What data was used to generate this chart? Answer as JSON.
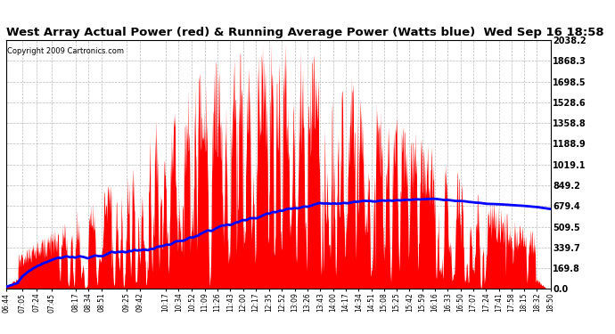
{
  "title": "West Array Actual Power (red) & Running Average Power (Watts blue)  Wed Sep 16 18:58",
  "copyright": "Copyright 2009 Cartronics.com",
  "ylabel_right_values": [
    2038.2,
    1868.3,
    1698.5,
    1528.6,
    1358.8,
    1188.9,
    1019.1,
    849.2,
    679.4,
    509.5,
    339.7,
    169.8,
    0.0
  ],
  "ymax": 2038.2,
  "ymin": 0.0,
  "bg_color": "#ffffff",
  "plot_bg_color": "#ffffff",
  "grid_color": "#bbbbbb",
  "bar_color": "#ff0000",
  "avg_color": "#0000ff",
  "time_labels": [
    "06:44",
    "07:05",
    "07:24",
    "07:45",
    "08:17",
    "08:34",
    "08:51",
    "09:25",
    "09:42",
    "10:17",
    "10:34",
    "10:52",
    "11:09",
    "11:26",
    "11:43",
    "12:00",
    "12:17",
    "12:35",
    "12:52",
    "13:09",
    "13:26",
    "13:43",
    "14:00",
    "14:17",
    "14:34",
    "14:51",
    "15:08",
    "15:25",
    "15:42",
    "15:59",
    "16:16",
    "16:33",
    "16:50",
    "17:07",
    "17:24",
    "17:41",
    "17:58",
    "18:15",
    "18:32",
    "18:50"
  ]
}
